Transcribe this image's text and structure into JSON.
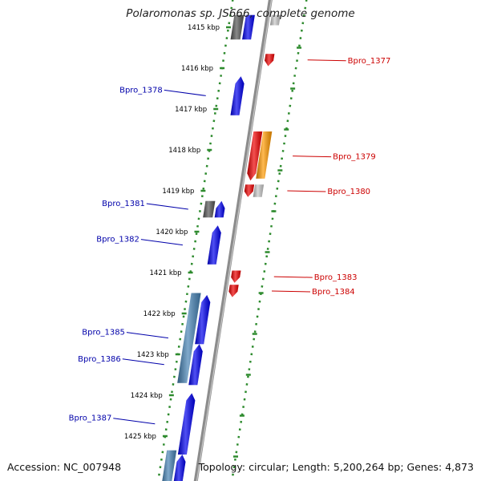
{
  "header": {
    "title": "Polaromonas sp. JS666, complete genome"
  },
  "footer": {
    "accession": "Accession: NC_007948",
    "summary": "Topology: circular; Length: 5,200,264 bp; Genes: 4,873"
  },
  "colors": {
    "backbone": "#8c8c8c",
    "track_dots": "#2e8b2e",
    "forward_gene": "#0000ee",
    "reverse_gene": "#ee0000",
    "reverse_alt_gene": "#ff9900",
    "neutral_gene": "#c8c8c8",
    "dark_gene": "#555555",
    "steel_gene": "#4682b4",
    "forward_label": "#0000aa",
    "reverse_label": "#cc0000"
  },
  "scale": {
    "unit": "kbp",
    "ticks": [
      {
        "kbp": 1415,
        "label": "1415 kbp"
      },
      {
        "kbp": 1416,
        "label": "1416 kbp"
      },
      {
        "kbp": 1417,
        "label": "1417 kbp"
      },
      {
        "kbp": 1418,
        "label": "1418 kbp"
      },
      {
        "kbp": 1419,
        "label": "1419 kbp"
      },
      {
        "kbp": 1420,
        "label": "1420 kbp"
      },
      {
        "kbp": 1421,
        "label": "1421 kbp"
      },
      {
        "kbp": 1422,
        "label": "1422 kbp"
      },
      {
        "kbp": 1423,
        "label": "1423 kbp"
      },
      {
        "kbp": 1424,
        "label": "1424 kbp"
      },
      {
        "kbp": 1425,
        "label": "1425 kbp"
      }
    ]
  },
  "genes": [
    {
      "track": "inner-outer",
      "start": 1414.7,
      "end": 1415.3,
      "color": "dark_gene",
      "dir": "none"
    },
    {
      "track": "inner",
      "start": 1414.7,
      "end": 1415.3,
      "color": "forward_gene",
      "dir": "none"
    },
    {
      "track": "outer",
      "start": 1414.7,
      "end": 1414.95,
      "color": "neutral_gene",
      "dir": "none"
    },
    {
      "track": "outer",
      "start": 1415.65,
      "end": 1415.95,
      "color": "reverse_gene",
      "dir": "reverse",
      "label": "Bpro_1377",
      "label_side": "right"
    },
    {
      "track": "inner",
      "start": 1416.2,
      "end": 1417.15,
      "color": "forward_gene",
      "dir": "forward",
      "label": "Bpro_1378",
      "label_side": "left"
    },
    {
      "track": "outer",
      "start": 1417.55,
      "end": 1418.75,
      "color": "reverse_gene",
      "dir": "reverse",
      "label": "Bpro_1379",
      "label_side": "right"
    },
    {
      "track": "outer2",
      "start": 1417.55,
      "end": 1418.7,
      "color": "reverse_alt_gene",
      "dir": "none"
    },
    {
      "track": "outer",
      "start": 1418.85,
      "end": 1419.15,
      "color": "reverse_gene",
      "dir": "reverse",
      "label": "Bpro_1380",
      "label_side": "right"
    },
    {
      "track": "outer2",
      "start": 1418.85,
      "end": 1419.15,
      "color": "neutral_gene",
      "dir": "none"
    },
    {
      "track": "inner-outer",
      "start": 1419.25,
      "end": 1419.65,
      "color": "dark_gene",
      "dir": "none",
      "label": "Bpro_1381",
      "label_side": "left"
    },
    {
      "track": "inner",
      "start": 1419.25,
      "end": 1419.65,
      "color": "forward_gene",
      "dir": "forward"
    },
    {
      "track": "inner",
      "start": 1419.85,
      "end": 1420.8,
      "color": "forward_gene",
      "dir": "forward",
      "label": "Bpro_1382",
      "label_side": "left"
    },
    {
      "track": "outer",
      "start": 1420.95,
      "end": 1421.25,
      "color": "reverse_gene",
      "dir": "reverse",
      "label": "Bpro_1383",
      "label_side": "right"
    },
    {
      "track": "outer",
      "start": 1421.3,
      "end": 1421.6,
      "color": "reverse_gene",
      "dir": "reverse",
      "label": "Bpro_1384",
      "label_side": "right"
    },
    {
      "track": "inner-outer",
      "start": 1421.5,
      "end": 1423.7,
      "color": "steel_gene",
      "dir": "none",
      "label": "Bpro_1385",
      "label_side": "left"
    },
    {
      "track": "inner",
      "start": 1421.55,
      "end": 1422.75,
      "color": "forward_gene",
      "dir": "forward"
    },
    {
      "track": "inner",
      "start": 1422.75,
      "end": 1423.75,
      "color": "forward_gene",
      "dir": "forward",
      "label": "Bpro_1386",
      "label_side": "left"
    },
    {
      "track": "inner",
      "start": 1423.95,
      "end": 1425.45,
      "color": "forward_gene",
      "dir": "forward",
      "label": "Bpro_1387",
      "label_side": "left"
    },
    {
      "track": "inner-outer",
      "start": 1425.35,
      "end": 1426.2,
      "color": "steel_gene",
      "dir": "none"
    },
    {
      "track": "inner",
      "start": 1425.45,
      "end": 1426.2,
      "color": "forward_gene",
      "dir": "forward"
    }
  ]
}
